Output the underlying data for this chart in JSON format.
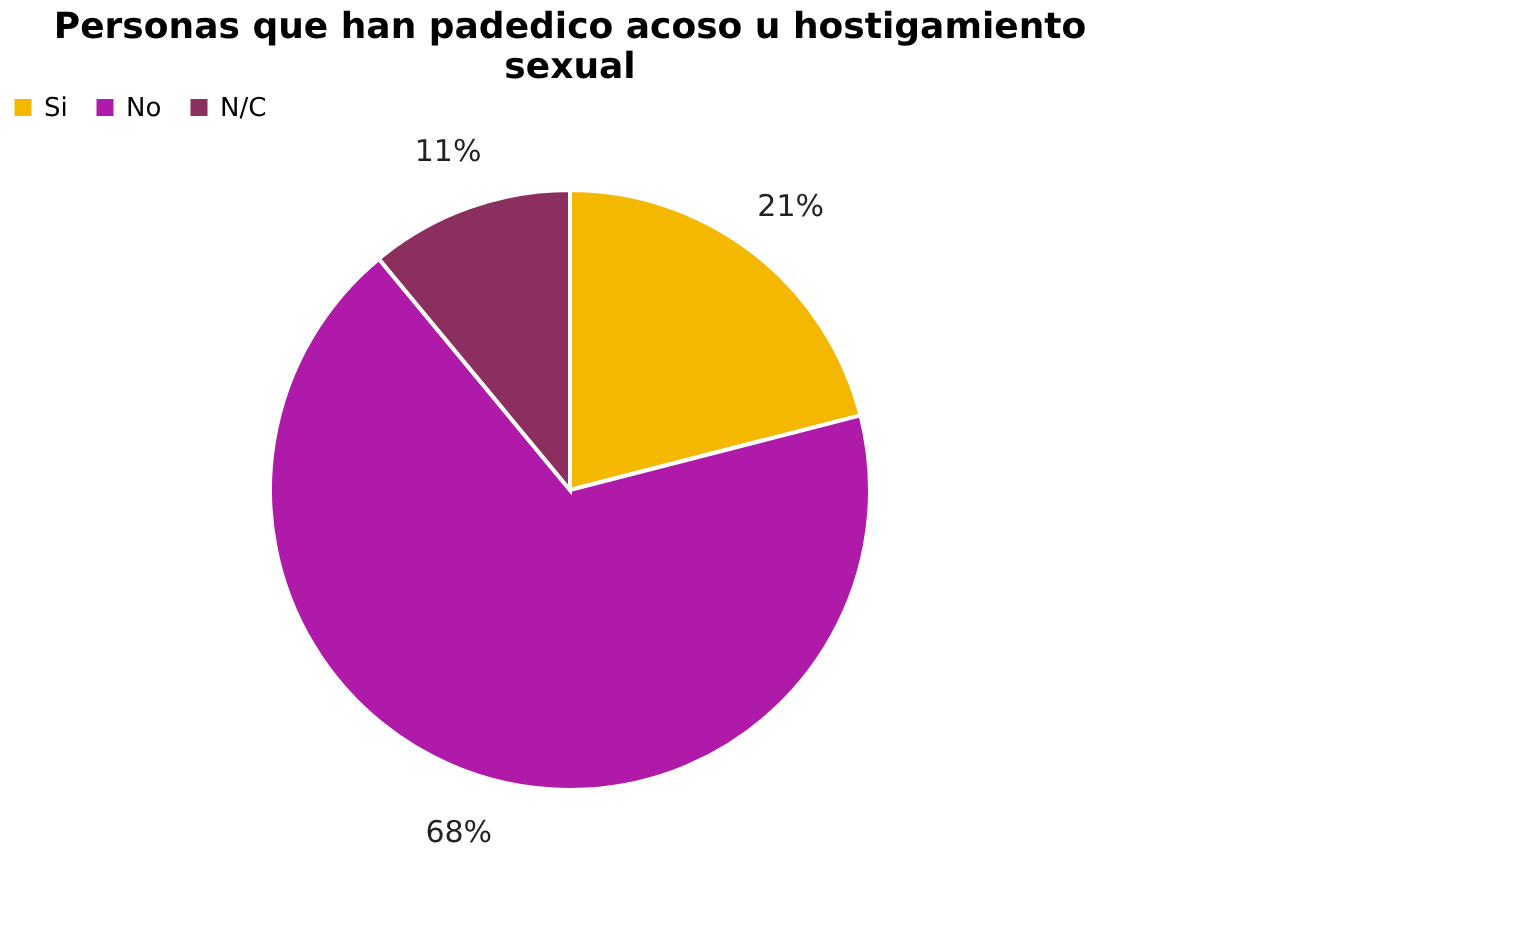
{
  "chart_data": {
    "type": "pie",
    "title": "Personas que han padedico acoso u hostigamiento sexual",
    "categories": [
      "Si",
      "No",
      "N/C"
    ],
    "values": [
      21,
      68,
      11
    ],
    "value_labels": [
      "21%",
      "68%",
      "11%"
    ],
    "colors": [
      "#f5b800",
      "#b01aa8",
      "#8b2f5e"
    ],
    "legend": "top"
  }
}
